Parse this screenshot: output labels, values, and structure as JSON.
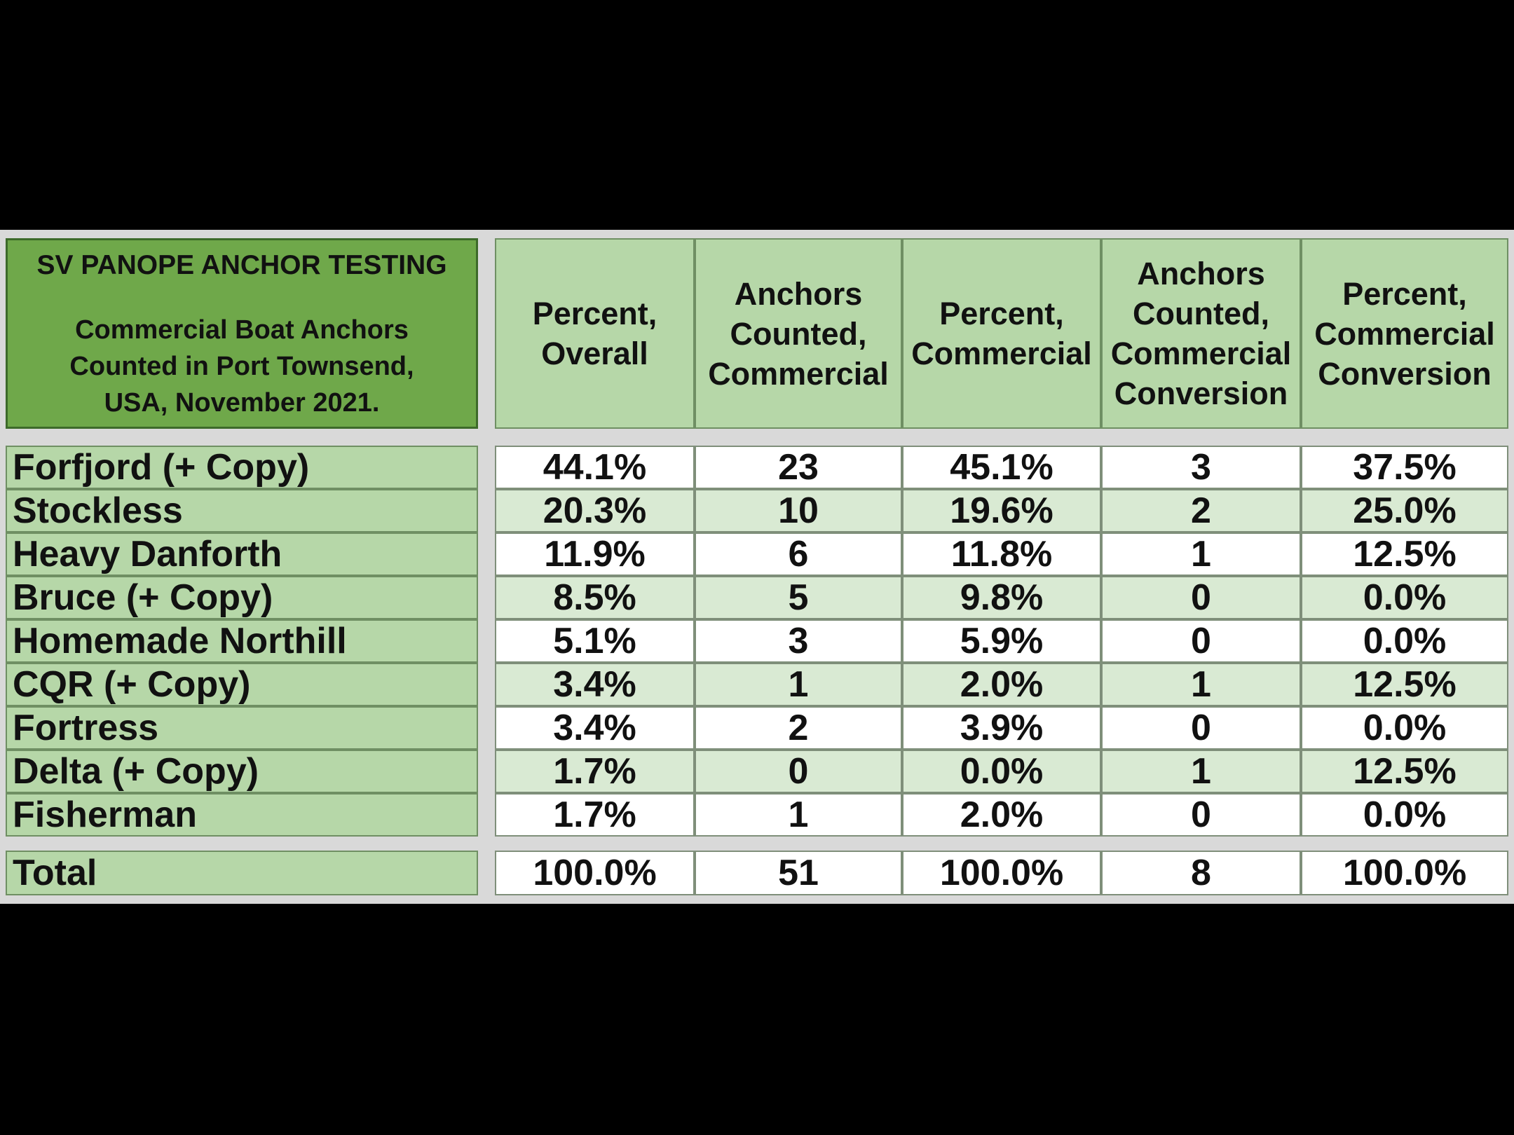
{
  "title_block": {
    "line1": "SV PANOPE ANCHOR TESTING",
    "line2": "Commercial Boat Anchors",
    "line3": "Counted in Port Townsend,",
    "line4": "USA, November 2021."
  },
  "colors": {
    "title_fill": "#6fa84a",
    "header_fill": "#b6d7a8",
    "row_alt_fill": "#d9ead3",
    "row_fill": "#ffffff",
    "background": "#000000"
  },
  "chart_data": {
    "type": "table",
    "columns": [
      "Percent, Overall",
      "Anchors Counted, Commercial",
      "Percent, Commercial",
      "Anchors Counted, Commercial Conversion",
      "Percent, Commercial Conversion"
    ],
    "rows": [
      {
        "name": "Forfjord (+ Copy)",
        "values": [
          "44.1%",
          "23",
          "45.1%",
          "3",
          "37.5%"
        ]
      },
      {
        "name": "Stockless",
        "values": [
          "20.3%",
          "10",
          "19.6%",
          "2",
          "25.0%"
        ]
      },
      {
        "name": "Heavy Danforth",
        "values": [
          "11.9%",
          "6",
          "11.8%",
          "1",
          "12.5%"
        ]
      },
      {
        "name": "Bruce (+ Copy)",
        "values": [
          "8.5%",
          "5",
          "9.8%",
          "0",
          "0.0%"
        ]
      },
      {
        "name": "Homemade Northill",
        "values": [
          "5.1%",
          "3",
          "5.9%",
          "0",
          "0.0%"
        ]
      },
      {
        "name": "CQR   (+ Copy)",
        "values": [
          "3.4%",
          "1",
          "2.0%",
          "1",
          "12.5%"
        ]
      },
      {
        "name": "Fortress",
        "values": [
          "3.4%",
          "2",
          "3.9%",
          "0",
          "0.0%"
        ]
      },
      {
        "name": "Delta (+ Copy)",
        "values": [
          "1.7%",
          "0",
          "0.0%",
          "1",
          "12.5%"
        ]
      },
      {
        "name": "Fisherman",
        "values": [
          "1.7%",
          "1",
          "2.0%",
          "0",
          "0.0%"
        ]
      }
    ],
    "total": {
      "name": "Total",
      "values": [
        "100.0%",
        "51",
        "100.0%",
        "8",
        "100.0%"
      ]
    }
  }
}
